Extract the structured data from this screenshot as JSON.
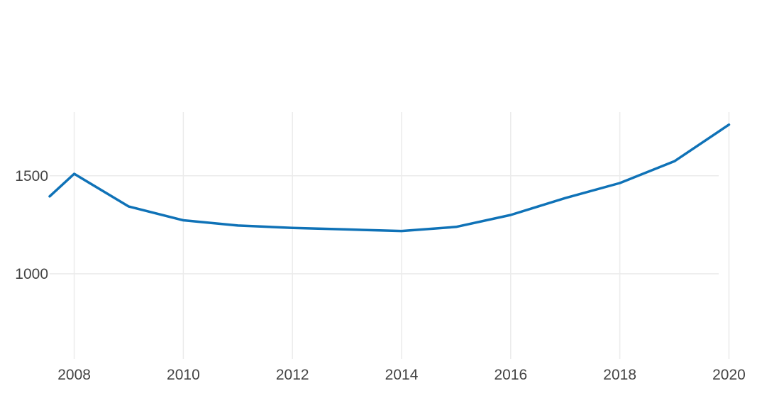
{
  "chart_data": {
    "type": "line",
    "title": "",
    "xlabel": "",
    "ylabel": "",
    "grid": true,
    "legend": "none",
    "xlim": [
      2007.55,
      2020.15
    ],
    "ylim": [
      565,
      1825
    ],
    "x_ticks": [
      2008,
      2010,
      2012,
      2014,
      2016,
      2018,
      2020
    ],
    "y_ticks": [
      1000,
      1500
    ],
    "x_tick_labels": [
      "2008",
      "2010",
      "2012",
      "2014",
      "2016",
      "2018",
      "2020"
    ],
    "y_tick_labels": [
      "1000",
      "1500"
    ],
    "series": [
      {
        "color": "#0f72b7",
        "points": [
          {
            "x": 2007.55,
            "y": 1395
          },
          {
            "x": 2008,
            "y": 1510
          },
          {
            "x": 2009,
            "y": 1343
          },
          {
            "x": 2010,
            "y": 1273
          },
          {
            "x": 2011,
            "y": 1246
          },
          {
            "x": 2012,
            "y": 1234
          },
          {
            "x": 2013,
            "y": 1226
          },
          {
            "x": 2014,
            "y": 1218
          },
          {
            "x": 2015,
            "y": 1239
          },
          {
            "x": 2016,
            "y": 1300
          },
          {
            "x": 2017,
            "y": 1386
          },
          {
            "x": 2018,
            "y": 1463
          },
          {
            "x": 2019,
            "y": 1574
          },
          {
            "x": 2020,
            "y": 1761
          }
        ]
      }
    ]
  }
}
